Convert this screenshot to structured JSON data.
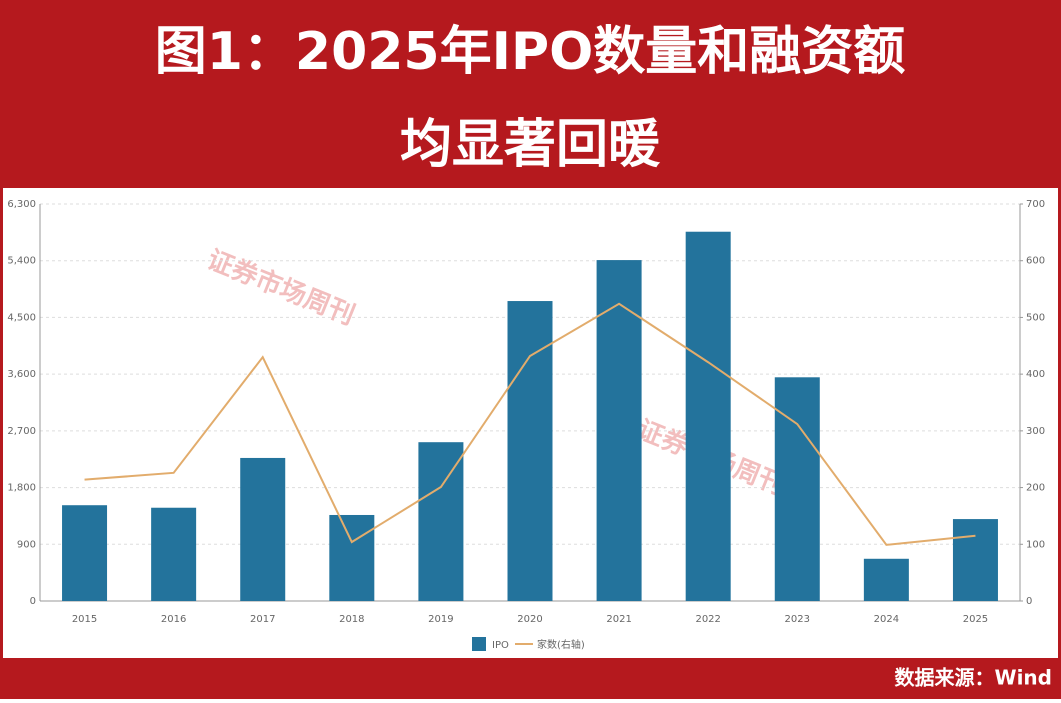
{
  "chart_data": {
    "type": "bar_line",
    "title_lines": [
      "图1：2025年IPO数量和融资额",
      "均显著回暖"
    ],
    "source": "数据来源：Wind",
    "watermark": "证券市场周刊",
    "categories": [
      "2015",
      "2016",
      "2017",
      "2018",
      "2019",
      "2020",
      "2021",
      "2022",
      "2023",
      "2024",
      "2025"
    ],
    "series": [
      {
        "name": "IPO",
        "type": "bar",
        "color": "#23739c",
        "values": [
          1520,
          1480,
          2270,
          1365,
          2520,
          4760,
          5410,
          5860,
          3550,
          670,
          1300
        ]
      },
      {
        "name": "家数(右轴)",
        "type": "line",
        "axis": "y2",
        "color": "#e2ac6c",
        "values": [
          214,
          226,
          430,
          104,
          201,
          432,
          524,
          421,
          312,
          99,
          115
        ]
      }
    ],
    "ylim": [
      0,
      6300
    ],
    "yticks": [
      0,
      900,
      {
        "value": 1800,
        "label": "1,800"
      },
      {
        "value": 2700,
        "label": "2,700"
      },
      {
        "value": 3600,
        "label": "3,600"
      },
      {
        "value": 4500,
        "label": "4,500"
      },
      {
        "value": 5400,
        "label": "5,400"
      },
      {
        "value": 6300,
        "label": "6,300"
      }
    ],
    "y2lim": [
      0,
      700
    ],
    "y2ticks": [
      0,
      100,
      200,
      300,
      400,
      500,
      600,
      700
    ],
    "grid": true
  }
}
